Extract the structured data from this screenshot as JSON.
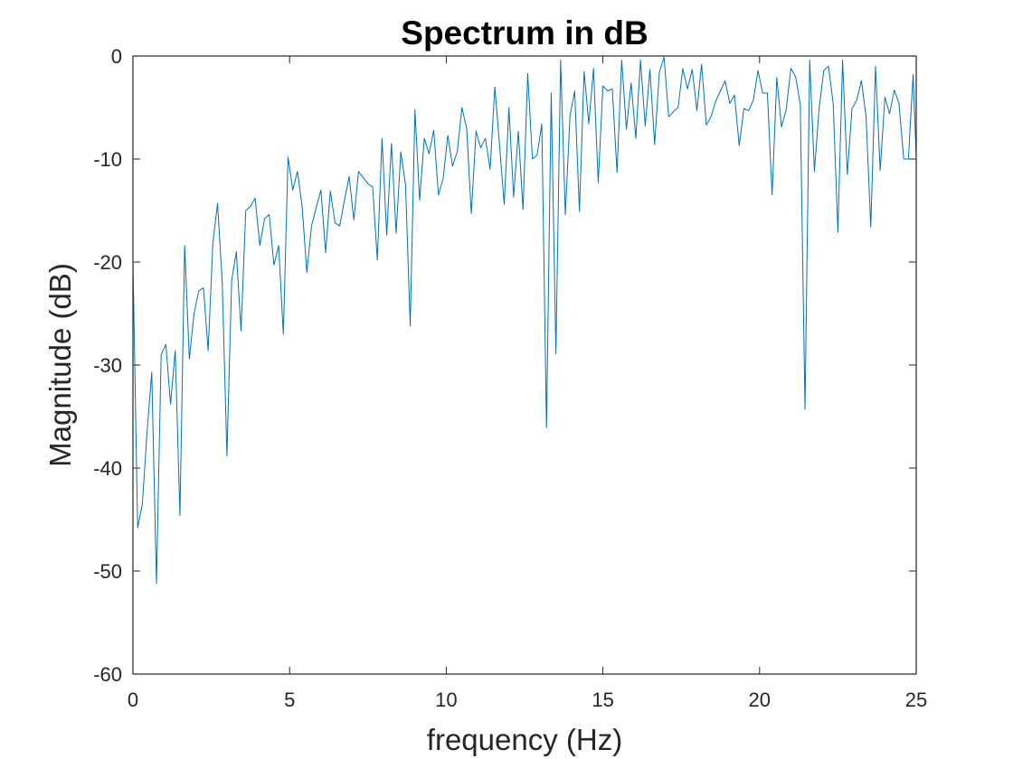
{
  "chart_data": {
    "type": "line",
    "title": "Spectrum in dB",
    "xlabel": "frequency (Hz)",
    "ylabel": "Magnitude (dB)",
    "xlim": [
      0,
      25
    ],
    "ylim": [
      -60,
      0
    ],
    "xticks": [
      0,
      5,
      10,
      15,
      20,
      25
    ],
    "yticks": [
      -60,
      -50,
      -40,
      -30,
      -20,
      -10,
      0
    ],
    "grid": false,
    "box": true,
    "series": [
      {
        "color": "#0072BD",
        "x": [
          0,
          0.15,
          0.3,
          0.45,
          0.6,
          0.75,
          0.9,
          1.05,
          1.2,
          1.35,
          1.5,
          1.65,
          1.8,
          1.95,
          2.1,
          2.25,
          2.4,
          2.55,
          2.7,
          2.85,
          3.0,
          3.15,
          3.3,
          3.45,
          3.6,
          3.75,
          3.9,
          4.05,
          4.2,
          4.35,
          4.5,
          4.65,
          4.8,
          4.95,
          5.1,
          5.25,
          5.4,
          5.55,
          5.7,
          5.85,
          6.0,
          6.15,
          6.3,
          6.45,
          6.6,
          6.75,
          6.9,
          7.05,
          7.2,
          7.35,
          7.5,
          7.65,
          7.8,
          7.95,
          8.1,
          8.25,
          8.4,
          8.55,
          8.7,
          8.85,
          9.0,
          9.15,
          9.3,
          9.45,
          9.6,
          9.75,
          9.9,
          10.05,
          10.2,
          10.35,
          10.5,
          10.65,
          10.8,
          10.95,
          11.1,
          11.25,
          11.4,
          11.55,
          11.7,
          11.85,
          12.0,
          12.15,
          12.3,
          12.45,
          12.6,
          12.75,
          12.9,
          13.05,
          13.2,
          13.35,
          13.5,
          13.65,
          13.8,
          13.95,
          14.1,
          14.25,
          14.4,
          14.55,
          14.7,
          14.85,
          15.0,
          15.15,
          15.3,
          15.45,
          15.6,
          15.75,
          15.9,
          16.05,
          16.2,
          16.35,
          16.5,
          16.65,
          16.8,
          16.95,
          17.1,
          17.25,
          17.4,
          17.55,
          17.7,
          17.85,
          18.0,
          18.15,
          18.3,
          18.45,
          18.6,
          18.75,
          18.9,
          19.05,
          19.2,
          19.35,
          19.5,
          19.65,
          19.8,
          19.95,
          20.1,
          20.25,
          20.4,
          20.55,
          20.7,
          20.85,
          21.0,
          21.15,
          21.3,
          21.45,
          21.6,
          21.75,
          21.9,
          22.05,
          22.2,
          22.35,
          22.5,
          22.65,
          22.8,
          22.95,
          23.1,
          23.25,
          23.4,
          23.55,
          23.7,
          23.85,
          24.0,
          24.15,
          24.3,
          24.45,
          24.6,
          24.75,
          24.9,
          25.0
        ],
        "y": [
          -20.0,
          -45.8,
          -43.5,
          -36.5,
          -30.7,
          -51.2,
          -29.0,
          -28.0,
          -33.8,
          -28.6,
          -44.6,
          -18.4,
          -29.4,
          -25.0,
          -22.8,
          -22.5,
          -28.6,
          -18.2,
          -14.3,
          -22.0,
          -38.8,
          -21.8,
          -19.0,
          -26.7,
          -15.0,
          -14.6,
          -13.8,
          -18.4,
          -15.8,
          -15.4,
          -20.3,
          -18.4,
          -27.0,
          -9.8,
          -13.0,
          -11.2,
          -14.6,
          -21.0,
          -16.5,
          -14.7,
          -13.0,
          -19.1,
          -13.1,
          -16.2,
          -16.5,
          -14.0,
          -11.7,
          -15.9,
          -11.2,
          -11.8,
          -12.4,
          -12.7,
          -19.8,
          -8.0,
          -17.4,
          -8.5,
          -17.2,
          -9.3,
          -12.5,
          -26.2,
          -5.2,
          -14.0,
          -8.0,
          -9.5,
          -7.2,
          -13.5,
          -11.9,
          -7.7,
          -10.7,
          -9.3,
          -5.0,
          -7.0,
          -15.3,
          -7.3,
          -8.9,
          -8.0,
          -11.0,
          -3.0,
          -8.6,
          -14.4,
          -5.0,
          -13.7,
          -7.3,
          -14.9,
          -1.7,
          -10.0,
          -9.6,
          -6.6,
          -36.1,
          -3.6,
          -28.9,
          -0.4,
          -15.4,
          -5.8,
          -3.4,
          -15.1,
          -1.5,
          -6.6,
          -1.2,
          -12.3,
          -2.9,
          -3.4,
          -3.2,
          -11.3,
          -0.4,
          -7.1,
          -2.6,
          -8.0,
          -0.4,
          -6.8,
          -1.3,
          -8.6,
          -1.6,
          -0.1,
          -5.9,
          -5.4,
          -5.0,
          -1.2,
          -3.2,
          -1.3,
          -5.3,
          -0.8,
          -6.7,
          -5.9,
          -4.4,
          -3.4,
          -2.4,
          -4.6,
          -3.8,
          -8.7,
          -5.1,
          -5.3,
          -4.3,
          -1.4,
          -3.6,
          -3.6,
          -13.5,
          -2.1,
          -6.9,
          -5.2,
          -1.2,
          -2.0,
          -4.7,
          -34.3,
          -0.4,
          -11.2,
          -5.1,
          -1.4,
          -1.0,
          -4.6,
          -17.1,
          -0.4,
          -11.5,
          -5.1,
          -4.3,
          -2.4,
          -5.9,
          -16.6,
          -1.0,
          -11.1,
          -4.0,
          -5.6,
          -3.3,
          -4.6,
          -10.0,
          -10.0,
          -1.8,
          -9.8
        ]
      }
    ]
  }
}
